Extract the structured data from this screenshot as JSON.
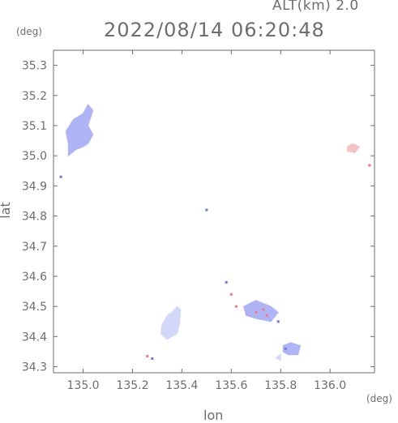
{
  "header": {
    "altitude_label": "ALT(km) 2.0",
    "timestamp": "2022/08/14 06:20:48"
  },
  "axes": {
    "x_unit": "(deg)",
    "y_unit": "(deg)",
    "x_label": "lon",
    "y_label": "lat",
    "x_ticks": [
      "135.0",
      "135.2",
      "135.4",
      "135.6",
      "135.8",
      "136.0"
    ],
    "y_ticks": [
      "35.3",
      "35.2",
      "35.1",
      "35.0",
      "34.9",
      "34.8",
      "34.7",
      "34.6",
      "34.5",
      "34.4",
      "34.3"
    ]
  },
  "colors": {
    "axis": "#6e6e6e",
    "blue_echo": "#aeb4f6",
    "blue_dark": "#6f72e6",
    "light_echo": "#d4d8f8",
    "red_echo": "#f07878",
    "pink_echo": "#f5c3c3"
  },
  "chart_data": {
    "type": "map",
    "xlim": [
      134.88,
      136.18
    ],
    "ylim": [
      34.28,
      35.35
    ],
    "echo_regions": [
      {
        "color": "blue",
        "polygon": [
          [
            134.96,
            35.12
          ],
          [
            135.0,
            35.14
          ],
          [
            135.02,
            35.17
          ],
          [
            135.04,
            35.15
          ],
          [
            135.02,
            35.1
          ],
          [
            135.04,
            35.07
          ],
          [
            135.02,
            35.04
          ],
          [
            135.0,
            35.03
          ],
          [
            134.97,
            35.02
          ],
          [
            134.94,
            35.0
          ],
          [
            134.94,
            35.04
          ],
          [
            134.93,
            35.08
          ]
        ]
      },
      {
        "color": "light",
        "polygon": [
          [
            135.36,
            34.48
          ],
          [
            135.38,
            34.5
          ],
          [
            135.395,
            34.49
          ],
          [
            135.39,
            34.44
          ],
          [
            135.38,
            34.41
          ],
          [
            135.34,
            34.39
          ],
          [
            135.315,
            34.41
          ],
          [
            135.32,
            34.44
          ],
          [
            135.34,
            34.47
          ]
        ]
      },
      {
        "color": "blue",
        "polygon": [
          [
            135.65,
            34.5
          ],
          [
            135.7,
            34.52
          ],
          [
            135.76,
            34.5
          ],
          [
            135.79,
            34.48
          ],
          [
            135.76,
            34.45
          ],
          [
            135.7,
            34.46
          ],
          [
            135.66,
            34.47
          ]
        ]
      },
      {
        "color": "blue",
        "polygon": [
          [
            135.81,
            34.37
          ],
          [
            135.84,
            34.38
          ],
          [
            135.88,
            34.37
          ],
          [
            135.87,
            34.34
          ],
          [
            135.83,
            34.34
          ],
          [
            135.81,
            34.35
          ]
        ]
      },
      {
        "color": "light",
        "polygon": [
          [
            135.78,
            34.33
          ],
          [
            135.8,
            34.34
          ],
          [
            135.8,
            34.32
          ]
        ]
      },
      {
        "color": "pink",
        "polygon": [
          [
            136.07,
            35.03
          ],
          [
            136.09,
            35.04
          ],
          [
            136.12,
            35.03
          ],
          [
            136.1,
            35.01
          ],
          [
            136.07,
            35.015
          ]
        ]
      }
    ],
    "echo_points": [
      {
        "color": "blue_dark",
        "lon": 134.91,
        "lat": 34.93
      },
      {
        "color": "blue_dark",
        "lon": 135.5,
        "lat": 34.82
      },
      {
        "color": "blue_dark",
        "lon": 135.58,
        "lat": 34.58
      },
      {
        "color": "red",
        "lon": 135.6,
        "lat": 34.54
      },
      {
        "color": "red",
        "lon": 135.62,
        "lat": 34.5
      },
      {
        "color": "red",
        "lon": 135.7,
        "lat": 34.48
      },
      {
        "color": "red",
        "lon": 135.73,
        "lat": 34.49
      },
      {
        "color": "red",
        "lon": 135.745,
        "lat": 34.47
      },
      {
        "color": "blue_dark",
        "lon": 135.79,
        "lat": 34.45
      },
      {
        "color": "blue_dark",
        "lon": 135.82,
        "lat": 34.36
      },
      {
        "color": "red",
        "lon": 135.26,
        "lat": 34.335
      },
      {
        "color": "blue_dark",
        "lon": 135.28,
        "lat": 34.327
      },
      {
        "color": "red",
        "lon": 136.16,
        "lat": 34.968
      }
    ]
  }
}
